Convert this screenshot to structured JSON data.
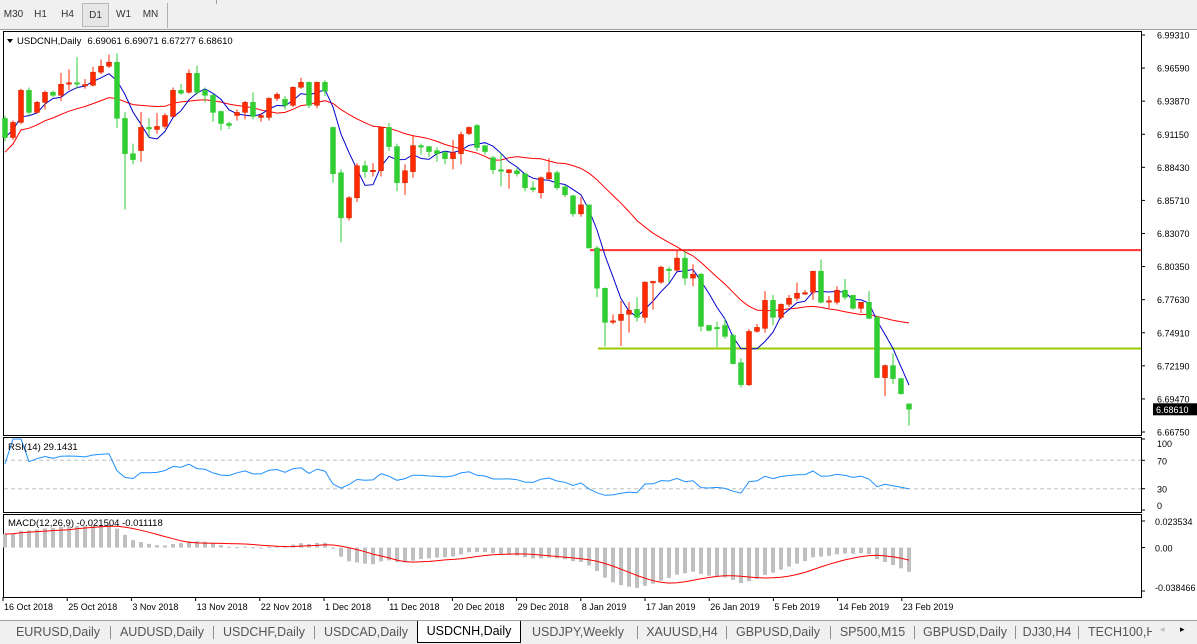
{
  "timeframes": [
    {
      "label": "M30",
      "active": false
    },
    {
      "label": "H1",
      "active": false
    },
    {
      "label": "H4",
      "active": false
    },
    {
      "label": "D1",
      "active": true
    },
    {
      "label": "W1",
      "active": false
    },
    {
      "label": "MN",
      "active": false
    }
  ],
  "header": {
    "symbol": "USDCNH,Daily",
    "ohlc": "6.69061 6.69071 6.67277 6.68610"
  },
  "price_axis": {
    "ticks": [
      "6.99310",
      "6.96590",
      "6.93870",
      "6.91150",
      "6.88430",
      "6.85710",
      "6.83070",
      "6.80350",
      "6.77630",
      "6.74910",
      "6.72190",
      "6.69470",
      "6.66750"
    ],
    "current_price": "6.68610"
  },
  "rsi": {
    "label": "RSI(14) 29.1431",
    "ticks": [
      "100",
      "70",
      "30",
      "0"
    ]
  },
  "macd": {
    "label": "MACD(12,26,9) -0.021504 -0.011118",
    "ticks": [
      "0.023534",
      "0.00",
      "-0.038466"
    ]
  },
  "time_axis": {
    "labels": [
      "16 Oct 2018",
      "25 Oct 2018",
      "3 Nov 2018",
      "13 Nov 2018",
      "22 Nov 2018",
      "1 Dec 2018",
      "11 Dec 2018",
      "20 Dec 2018",
      "29 Dec 2018",
      "8 Jan 2019",
      "17 Jan 2019",
      "26 Jan 2019",
      "5 Feb 2019",
      "14 Feb 2019",
      "23 Feb 2019"
    ]
  },
  "colors": {
    "bull": "#ff2a00",
    "bear": "#32cd32",
    "ma_fast": "#0000cc",
    "ma_slow": "#ff0000",
    "resistance": "#ff3333",
    "support": "#99cc00",
    "rsi_line": "#1e90ff",
    "macd_hist": "#c0c0c0",
    "macd_signal": "#ff0000"
  },
  "chart_data": {
    "type": "candlestick",
    "title": "USDCNH,Daily",
    "ylim": [
      6.6675,
      6.9931
    ],
    "x_tick_labels": [
      "16 Oct 2018",
      "25 Oct 2018",
      "3 Nov 2018",
      "13 Nov 2018",
      "22 Nov 2018",
      "1 Dec 2018",
      "11 Dec 2018",
      "20 Dec 2018",
      "29 Dec 2018",
      "8 Jan 2019",
      "17 Jan 2019",
      "26 Jan 2019",
      "5 Feb 2019",
      "14 Feb 2019",
      "23 Feb 2019"
    ],
    "ohlc_fields": [
      "open",
      "high",
      "low",
      "close"
    ],
    "candles": [
      [
        6.9247,
        6.927,
        6.906,
        6.909
      ],
      [
        6.909,
        6.923,
        6.907,
        6.9214
      ],
      [
        6.9214,
        6.949,
        6.92,
        6.9477
      ],
      [
        6.9477,
        6.95,
        6.927,
        6.9296
      ],
      [
        6.9296,
        6.939,
        6.9285,
        6.9379
      ],
      [
        6.9379,
        6.9475,
        6.932,
        6.9461
      ],
      [
        6.9461,
        6.9475,
        6.942,
        6.9436
      ],
      [
        6.9436,
        6.962,
        6.939,
        6.9527
      ],
      [
        6.9535,
        6.965,
        6.948,
        6.954
      ],
      [
        6.954,
        6.975,
        6.949,
        6.9535
      ],
      [
        6.9519,
        6.957,
        6.949,
        6.9525
      ],
      [
        6.9519,
        6.967,
        6.951,
        6.9626
      ],
      [
        6.9626,
        6.973,
        6.961,
        6.9675
      ],
      [
        6.9675,
        6.977,
        6.966,
        6.9708
      ],
      [
        6.9708,
        6.978,
        6.917,
        6.9247
      ],
      [
        6.9247,
        6.93,
        6.85,
        6.8958
      ],
      [
        6.8958,
        6.904,
        6.887,
        6.8909
      ],
      [
        6.8983,
        6.93,
        6.889,
        6.9173
      ],
      [
        6.9173,
        6.925,
        6.909,
        6.9168
      ],
      [
        6.9156,
        6.929,
        6.912,
        6.9181
      ],
      [
        6.9181,
        6.929,
        6.916,
        6.9271
      ],
      [
        6.9263,
        6.95,
        6.926,
        6.9477
      ],
      [
        6.9477,
        6.953,
        6.944,
        6.9453
      ],
      [
        6.9461,
        6.965,
        6.945,
        6.9617
      ],
      [
        6.9617,
        6.968,
        6.944,
        6.9461
      ],
      [
        6.9477,
        6.95,
        6.938,
        6.9436
      ],
      [
        6.9436,
        6.945,
        6.922,
        6.9296
      ],
      [
        6.9304,
        6.931,
        6.915,
        6.9205
      ],
      [
        6.9205,
        6.922,
        6.916,
        6.9189
      ],
      [
        6.9271,
        6.932,
        6.923,
        6.9296
      ],
      [
        6.9296,
        6.939,
        6.924,
        6.9379
      ],
      [
        6.9379,
        6.946,
        6.924,
        6.9263
      ],
      [
        6.9255,
        6.929,
        6.922,
        6.9271
      ],
      [
        6.9255,
        6.942,
        6.923,
        6.9411
      ],
      [
        6.9411,
        6.946,
        6.939,
        6.9444
      ],
      [
        6.9403,
        6.943,
        6.932,
        6.9354
      ],
      [
        6.9354,
        6.951,
        6.934,
        6.9502
      ],
      [
        6.9502,
        6.958,
        6.949,
        6.9543
      ],
      [
        6.9543,
        6.955,
        6.933,
        6.9354
      ],
      [
        6.9354,
        6.955,
        6.933,
        6.9543
      ],
      [
        6.9543,
        6.956,
        6.943,
        6.9469
      ],
      [
        6.9173,
        6.918,
        6.872,
        6.8793
      ],
      [
        6.8802,
        6.883,
        6.823,
        6.8431
      ],
      [
        6.8431,
        6.861,
        6.841,
        6.8596
      ],
      [
        6.8596,
        6.888,
        6.856,
        6.8859
      ],
      [
        6.8859,
        6.89,
        6.876,
        6.881
      ],
      [
        6.8818,
        6.888,
        6.877,
        6.8822
      ],
      [
        6.8818,
        6.918,
        6.877,
        6.9173
      ],
      [
        6.9173,
        6.921,
        6.898,
        6.9016
      ],
      [
        6.9016,
        6.904,
        6.865,
        6.8719
      ],
      [
        6.8719,
        6.887,
        6.862,
        6.8818
      ],
      [
        6.881,
        6.911,
        6.876,
        6.9024
      ],
      [
        6.9024,
        6.904,
        6.895,
        6.9016
      ],
      [
        6.9016,
        6.902,
        6.893,
        6.8975
      ],
      [
        6.8983,
        6.901,
        6.889,
        6.8958
      ],
      [
        6.8967,
        6.898,
        6.887,
        6.8917
      ],
      [
        6.8917,
        6.907,
        6.883,
        6.8967
      ],
      [
        6.8958,
        6.914,
        6.887,
        6.9115
      ],
      [
        6.9123,
        6.918,
        6.911,
        6.9173
      ],
      [
        6.9189,
        6.92,
        6.898,
        6.9008
      ],
      [
        6.9024,
        6.903,
        6.895,
        6.8975
      ],
      [
        6.8925,
        6.894,
        6.879,
        6.8826
      ],
      [
        6.8826,
        6.896,
        6.869,
        6.8822
      ],
      [
        6.8802,
        6.883,
        6.867,
        6.8826
      ],
      [
        6.8818,
        6.884,
        6.877,
        6.8793
      ],
      [
        6.8793,
        6.88,
        6.865,
        6.8678
      ],
      [
        6.8678,
        6.873,
        6.864,
        6.8662
      ],
      [
        6.8637,
        6.877,
        6.859,
        6.8761
      ],
      [
        6.8752,
        6.892,
        6.874,
        6.8802
      ],
      [
        6.8802,
        6.882,
        6.866,
        6.8678
      ],
      [
        6.8686,
        6.87,
        6.86,
        6.862
      ],
      [
        6.8612,
        6.862,
        6.844,
        6.8464
      ],
      [
        6.8464,
        6.86,
        6.844,
        6.8538
      ],
      [
        6.8538,
        6.854,
        6.818,
        6.8184
      ],
      [
        6.8184,
        6.82,
        6.778,
        6.7854
      ],
      [
        6.7854,
        6.786,
        6.7376,
        6.7574
      ],
      [
        6.7582,
        6.764,
        6.756,
        6.7587
      ],
      [
        6.759,
        6.775,
        6.738,
        6.764
      ],
      [
        6.764,
        6.774,
        6.749,
        6.7673
      ],
      [
        6.7681,
        6.778,
        6.758,
        6.7615
      ],
      [
        6.7615,
        6.791,
        6.757,
        6.7904
      ],
      [
        6.7904,
        6.7915,
        6.768,
        6.791
      ],
      [
        6.7904,
        6.804,
        6.789,
        6.8027
      ],
      [
        6.8011,
        6.803,
        6.79,
        6.8006
      ],
      [
        6.8002,
        6.816,
        6.799,
        6.8101
      ],
      [
        6.8101,
        6.816,
        6.788,
        6.7937
      ],
      [
        6.7937,
        6.805,
        6.787,
        6.7969
      ],
      [
        6.7969,
        6.798,
        6.75,
        6.7541
      ],
      [
        6.7549,
        6.755,
        6.75,
        6.7508
      ],
      [
        6.7533,
        6.758,
        6.737,
        6.753
      ],
      [
        6.7549,
        6.76,
        6.744,
        6.7459
      ],
      [
        6.7467,
        6.748,
        6.723,
        6.7236
      ],
      [
        6.7244,
        6.728,
        6.704,
        6.7063
      ],
      [
        6.7063,
        6.752,
        6.705,
        6.75
      ],
      [
        6.75,
        6.756,
        6.749,
        6.7533
      ],
      [
        6.7525,
        6.783,
        6.749,
        6.7755
      ],
      [
        6.7755,
        6.78,
        6.755,
        6.7615
      ],
      [
        6.7615,
        6.773,
        6.76,
        6.7722
      ],
      [
        6.7722,
        6.78,
        6.77,
        6.7772
      ],
      [
        6.7772,
        6.79,
        6.775,
        6.7813
      ],
      [
        6.7813,
        6.784,
        6.78,
        6.7818
      ],
      [
        6.7821,
        6.7995,
        6.776,
        6.7994
      ],
      [
        6.7994,
        6.809,
        6.773,
        6.7739
      ],
      [
        6.7747,
        6.779,
        6.769,
        6.7752
      ],
      [
        6.7739,
        6.787,
        6.772,
        6.7838
      ],
      [
        6.7838,
        6.793,
        6.776,
        6.778
      ],
      [
        6.7796,
        6.78,
        6.768,
        6.7689
      ],
      [
        6.7689,
        6.774,
        6.765,
        6.7739
      ],
      [
        6.7739,
        6.783,
        6.76,
        6.7607
      ],
      [
        6.7615,
        6.763,
        6.712,
        6.7121
      ],
      [
        6.7121,
        6.723,
        6.697,
        6.722
      ],
      [
        6.722,
        6.732,
        6.707,
        6.7113
      ],
      [
        6.7113,
        6.712,
        6.698,
        6.6989
      ],
      [
        6.69061,
        6.69071,
        6.67277,
        6.6861
      ]
    ],
    "horizontal_lines": [
      {
        "role": "resistance",
        "price": 6.8167
      },
      {
        "role": "support",
        "price": 6.736
      }
    ],
    "indicators": {
      "rsi": {
        "period": 14,
        "last": 29.1431,
        "levels": [
          70,
          30
        ],
        "ylim": [
          0,
          100
        ]
      },
      "macd": {
        "fast": 12,
        "slow": 26,
        "signal": 9,
        "main_last": -0.021504,
        "signal_last": -0.011118,
        "ylim": [
          -0.038466,
          0.023534
        ]
      }
    }
  },
  "tabs": [
    {
      "label": "EURUSD,Daily",
      "active": false
    },
    {
      "label": "AUDUSD,Daily",
      "active": false
    },
    {
      "label": "USDCHF,Daily",
      "active": false
    },
    {
      "label": "USDCAD,Daily",
      "active": false
    },
    {
      "label": "USDCNH,Daily",
      "active": true
    },
    {
      "label": "USDJPY,Weekly",
      "active": false
    },
    {
      "label": "XAUUSD,H4",
      "active": false
    },
    {
      "label": "GBPUSD,Daily",
      "active": false
    },
    {
      "label": "SP500,M15",
      "active": false
    },
    {
      "label": "GBPUSD,Daily",
      "active": false
    },
    {
      "label": "DJ30,H4",
      "active": false
    },
    {
      "label": "TECH100,H",
      "active": false
    }
  ],
  "tab_scroll": {
    "left": "◂",
    "right": "▸"
  }
}
